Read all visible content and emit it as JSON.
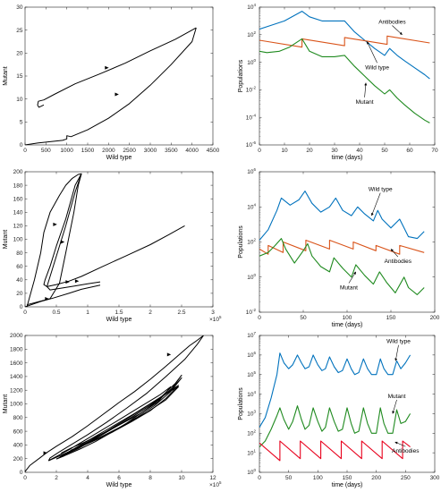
{
  "chart_data": [
    {
      "id": "p1",
      "type": "line",
      "panel": "top-left",
      "xlabel": "Wild type",
      "ylabel": "Mutant",
      "xlim": [
        0,
        4500
      ],
      "ylim": [
        0,
        30
      ],
      "grid": false,
      "xticks": [
        "0",
        "500",
        "1000",
        "1500",
        "2000",
        "2500",
        "3000",
        "3500",
        "4000",
        "4500"
      ],
      "yticks": [
        "0",
        "5",
        "10",
        "15",
        "20",
        "25",
        "30"
      ],
      "series": [
        {
          "x": [
            0,
            300,
            700,
            900,
            1000,
            1000,
            1100,
            1500,
            2000,
            2500,
            3000,
            3500,
            4000,
            4100
          ],
          "y": [
            0,
            0.4,
            0.8,
            1.0,
            1.3,
            2.0,
            1.8,
            3.3,
            5.8,
            9.0,
            13.0,
            17.5,
            22.5,
            25.5
          ]
        },
        {
          "x": [
            4100,
            3600,
            3000,
            2400,
            1800,
            1200,
            700,
            450,
            320,
            300,
            330,
            400,
            450
          ],
          "y": [
            25.5,
            23.0,
            20.5,
            17.8,
            15.5,
            13.3,
            11.0,
            9.8,
            9.5,
            8.7,
            8.2,
            8.5,
            8.7
          ]
        }
      ],
      "arrows": [
        [
          1960,
          16.8
        ],
        [
          2200,
          11.0
        ]
      ]
    },
    {
      "id": "p2",
      "type": "line",
      "panel": "top-right",
      "xlabel": "time (days)",
      "ylabel": "Populations",
      "yscale": "log",
      "xlim": [
        0,
        70
      ],
      "ylim": [
        -6,
        4
      ],
      "grid": false,
      "xticks": [
        "0",
        "10",
        "20",
        "30",
        "40",
        "50",
        "60",
        "70"
      ],
      "ytick_exponents": [
        "4",
        "2",
        "0",
        "-2",
        "-4",
        "-6"
      ],
      "ytick_base": "10",
      "series": [
        {
          "color": "#0072BD",
          "x": [
            0,
            5,
            10,
            17,
            20,
            25,
            30,
            34,
            38,
            42,
            46,
            50,
            52,
            55,
            58,
            62,
            66,
            68
          ],
          "y": [
            2.4,
            2.7,
            3.0,
            3.7,
            3.3,
            3.0,
            3.0,
            3.0,
            2.2,
            1.6,
            1.0,
            0.5,
            1.0,
            0.5,
            0.1,
            -0.4,
            -0.9,
            -1.2
          ]
        },
        {
          "color": "#D95319",
          "x": [
            0,
            17,
            17,
            34,
            34,
            51,
            51,
            68
          ],
          "y": [
            1.6,
            1.1,
            1.7,
            1.2,
            1.8,
            1.3,
            1.9,
            1.4
          ]
        },
        {
          "color": "#1F8A1F",
          "x": [
            0,
            3,
            8,
            12,
            17,
            20,
            25,
            30,
            34,
            38,
            42,
            46,
            50,
            52,
            55,
            58,
            62,
            66,
            68
          ],
          "y": [
            0.8,
            0.7,
            0.8,
            1.1,
            1.7,
            0.8,
            0.4,
            0.4,
            0.5,
            -0.3,
            -1.0,
            -1.7,
            -2.3,
            -2.0,
            -2.6,
            -3.1,
            -3.7,
            -4.2,
            -4.4
          ]
        }
      ],
      "annotations": [
        {
          "text": "Antibodies",
          "x": 53,
          "y": 2.8,
          "ax": 57,
          "ay": 2.0
        },
        {
          "text": "Wild type",
          "x": 47,
          "y": -0.5,
          "ax": 43,
          "ay": 1.5
        },
        {
          "text": "Mutant",
          "x": 42,
          "y": -3.0,
          "ax": 42.5,
          "ay": -1.5
        }
      ]
    },
    {
      "id": "p3",
      "type": "line",
      "panel": "middle-left",
      "xlabel": "Wild type",
      "ylabel": "Mutant",
      "xexponent": "5",
      "xlim": [
        0,
        3
      ],
      "ylim": [
        0,
        200
      ],
      "grid": false,
      "xticks": [
        "0",
        "0.5",
        "1",
        "1.5",
        "2",
        "2.5",
        "3"
      ],
      "yticks": [
        "0",
        "20",
        "40",
        "60",
        "80",
        "100",
        "120",
        "140",
        "160",
        "180",
        "200"
      ],
      "series": [
        {
          "x": [
            0.03,
            0.4,
            0.55,
            0.65,
            0.78,
            0.85,
            0.9,
            0.8,
            0.65,
            0.5,
            0.4,
            0.32,
            0.3,
            0.35,
            0.5,
            0.7,
            0.9,
            1.2,
            1.6,
            2.0,
            2.3,
            2.55
          ],
          "y": [
            3,
            12,
            35,
            80,
            140,
            180,
            197,
            180,
            130,
            90,
            60,
            40,
            33,
            30,
            33,
            38,
            45,
            58,
            75,
            92,
            107,
            120
          ]
        },
        {
          "x": [
            0.03,
            0.15,
            0.25,
            0.3,
            0.4,
            0.55,
            0.65,
            0.75,
            0.85,
            0.9,
            0.8,
            0.65,
            0.5,
            0.4,
            0.35,
            0.4,
            0.6,
            0.8,
            1.0,
            1.2
          ],
          "y": [
            0,
            40,
            80,
            110,
            140,
            165,
            180,
            190,
            196,
            197,
            170,
            120,
            75,
            45,
            30,
            25,
            28,
            31,
            34,
            37
          ]
        },
        {
          "x": [
            0.0,
            0.25,
            0.45,
            0.7,
            0.9,
            1.2
          ],
          "y": [
            0,
            8,
            13,
            20,
            26,
            32
          ]
        }
      ],
      "arrows": [
        [
          0.48,
          122
        ],
        [
          0.6,
          96
        ],
        [
          0.68,
          37
        ],
        [
          0.83,
          38
        ],
        [
          0.35,
          12
        ]
      ]
    },
    {
      "id": "p4",
      "type": "line",
      "panel": "middle-right",
      "xlabel": "time (days)",
      "ylabel": "Populations",
      "yscale": "log",
      "xlim": [
        0,
        200
      ],
      "ylim": [
        -2,
        6
      ],
      "grid": false,
      "xticks": [
        "0",
        "50",
        "100",
        "150",
        "200"
      ],
      "ytick_exponents": [
        "6",
        "4",
        "2",
        "0",
        "-2"
      ],
      "ytick_base": "10",
      "series": [
        {
          "color": "#0072BD",
          "x": [
            0,
            10,
            20,
            25,
            35,
            45,
            52,
            60,
            70,
            80,
            87,
            95,
            105,
            112,
            120,
            130,
            135,
            140,
            150,
            160,
            165,
            170,
            180,
            188
          ],
          "y": [
            2.1,
            2.7,
            3.8,
            4.5,
            4.1,
            4.4,
            4.9,
            4.2,
            3.7,
            4.0,
            4.5,
            3.8,
            3.5,
            4.0,
            3.6,
            3.2,
            3.8,
            3.3,
            2.8,
            3.3,
            2.8,
            2.3,
            2.2,
            2.6
          ]
        },
        {
          "color": "#D95319",
          "x": [
            0,
            10,
            10,
            27,
            27,
            53,
            53,
            80,
            80,
            107,
            107,
            133,
            133,
            160,
            160,
            188
          ],
          "y": [
            1.6,
            1.3,
            1.8,
            1.4,
            2.0,
            1.5,
            2.1,
            1.6,
            2.1,
            1.6,
            2.0,
            1.5,
            1.8,
            1.3,
            1.8,
            1.4
          ]
        },
        {
          "color": "#1F8A1F",
          "x": [
            0,
            10,
            18,
            25,
            30,
            40,
            50,
            55,
            60,
            70,
            80,
            85,
            95,
            105,
            110,
            120,
            130,
            137,
            145,
            155,
            165,
            170,
            180,
            188
          ],
          "y": [
            1.2,
            1.4,
            1.8,
            2.2,
            1.6,
            0.8,
            1.5,
            1.9,
            1.2,
            0.6,
            0.3,
            1.1,
            0.5,
            0.0,
            0.7,
            0.1,
            -0.4,
            0.3,
            -0.3,
            -0.9,
            0.0,
            -0.6,
            -1.0,
            -0.6
          ]
        }
      ],
      "annotations": [
        {
          "text": "Wild type",
          "x": 138,
          "y": 4.9,
          "ax": 128,
          "ay": 3.5
        },
        {
          "text": "Antibodies",
          "x": 158,
          "y": 0.8,
          "ax": 150,
          "ay": 1.6
        },
        {
          "text": "Mutant",
          "x": 102,
          "y": -0.7,
          "ax": 110,
          "ay": 0.3
        }
      ]
    },
    {
      "id": "p5",
      "type": "line",
      "panel": "bottom-left",
      "xlabel": "Wild type",
      "ylabel": "Mutant",
      "xexponent": "5",
      "xlim": [
        0,
        12
      ],
      "ylim": [
        0,
        2000
      ],
      "grid": false,
      "xticks": [
        "0",
        "2",
        "4",
        "6",
        "8",
        "10",
        "12"
      ],
      "yticks": [
        "0",
        "200",
        "400",
        "600",
        "800",
        "1000",
        "1200",
        "1400",
        "1600",
        "1800",
        "2000"
      ],
      "series": [
        {
          "x": [
            0.0,
            0.3,
            1.0,
            1.4,
            2,
            3,
            4,
            5,
            6,
            7,
            8,
            9,
            10,
            10.5,
            11.0,
            11.4,
            11.0,
            10.2,
            9.0,
            7.8,
            6.5,
            5.2,
            4.0,
            3.0,
            2.2,
            1.6,
            1.5
          ],
          "y": [
            10,
            100,
            220,
            290,
            380,
            520,
            680,
            850,
            1020,
            1180,
            1360,
            1550,
            1750,
            1850,
            1930,
            2000,
            1870,
            1650,
            1400,
            1160,
            940,
            730,
            550,
            410,
            300,
            210,
            170
          ]
        },
        {
          "x": [
            1.5,
            3,
            5,
            7,
            8.5,
            9.6,
            10,
            9.4,
            8.5,
            7.5,
            6.5,
            5.5,
            4.5,
            3.5,
            2.5,
            2.0
          ],
          "y": [
            170,
            320,
            560,
            830,
            1060,
            1300,
            1420,
            1230,
            1050,
            880,
            720,
            580,
            450,
            340,
            240,
            195
          ]
        },
        {
          "x": [
            2.0,
            3.5,
            5,
            6.5,
            8,
            9.3,
            10,
            9.3,
            8.3,
            7.2,
            6.0,
            4.8,
            3.6,
            2.7,
            2.2
          ],
          "y": [
            195,
            360,
            560,
            760,
            980,
            1200,
            1380,
            1180,
            980,
            810,
            650,
            510,
            390,
            290,
            220
          ]
        },
        {
          "x": [
            2.2,
            3.5,
            5,
            6.5,
            8,
            9.2,
            9.8,
            9.0,
            8.0,
            6.8,
            5.6,
            4.5,
            3.5,
            2.8
          ],
          "y": [
            220,
            380,
            570,
            780,
            1000,
            1180,
            1270,
            1080,
            900,
            740,
            590,
            470,
            370,
            300
          ]
        },
        {
          "x": [
            2.8,
            4,
            5.5,
            7,
            8.4,
            9.4,
            9.8,
            9.0,
            7.8,
            6.5,
            5.3,
            4.3,
            3.4,
            2.9
          ],
          "y": [
            300,
            460,
            660,
            860,
            1060,
            1200,
            1250,
            1060,
            880,
            710,
            570,
            460,
            370,
            320
          ]
        },
        {
          "x": [
            1.5,
            2.8,
            4.2,
            5.8,
            7.3,
            8.6,
            9.3,
            8.5,
            7.3,
            6.0,
            4.8,
            3.8,
            2.9,
            2.3
          ],
          "y": [
            170,
            330,
            520,
            740,
            950,
            1130,
            1250,
            1030,
            850,
            690,
            550,
            440,
            350,
            280
          ]
        }
      ],
      "arrows": [
        [
          1.3,
          282
        ],
        [
          9.2,
          1720
        ]
      ]
    },
    {
      "id": "p6",
      "type": "line",
      "panel": "bottom-right",
      "xlabel": "time (days)",
      "ylabel": "Populations",
      "yscale": "log",
      "xlim": [
        0,
        300
      ],
      "ylim": [
        0,
        7
      ],
      "grid": false,
      "xticks": [
        "0",
        "50",
        "100",
        "150",
        "200",
        "250",
        "300"
      ],
      "ytick_exponents": [
        "7",
        "6",
        "5",
        "4",
        "3",
        "2",
        "1",
        "0"
      ],
      "ytick_base": "10",
      "series": [
        {
          "color": "#0072BD",
          "x": [
            0,
            10,
            20,
            30,
            35,
            42,
            50,
            57,
            65,
            72,
            78,
            85,
            92,
            100,
            107,
            113,
            120,
            128,
            135,
            142,
            150,
            157,
            163,
            170,
            178,
            185,
            192,
            200,
            207,
            213,
            220,
            228,
            235,
            242,
            250,
            258
          ],
          "y": [
            2.3,
            2.8,
            3.8,
            5.0,
            6.1,
            5.6,
            5.3,
            5.5,
            6.0,
            5.6,
            5.3,
            5.4,
            6.0,
            5.5,
            5.2,
            5.3,
            5.9,
            5.4,
            5.1,
            5.2,
            5.8,
            5.3,
            5.0,
            5.1,
            5.8,
            5.3,
            5.0,
            5.0,
            5.8,
            5.3,
            5.0,
            5.0,
            5.7,
            5.3,
            5.6,
            6.0
          ]
        },
        {
          "color": "#1F8A1F",
          "x": [
            0,
            10,
            20,
            30,
            35,
            42,
            50,
            57,
            65,
            72,
            78,
            85,
            92,
            100,
            107,
            113,
            120,
            128,
            135,
            142,
            150,
            157,
            163,
            170,
            178,
            185,
            192,
            200,
            207,
            213,
            220,
            228,
            235,
            242,
            250,
            258
          ],
          "y": [
            1.3,
            1.6,
            2.2,
            2.9,
            3.3,
            2.7,
            2.2,
            2.6,
            3.4,
            2.7,
            2.2,
            2.4,
            3.3,
            2.6,
            2.1,
            2.3,
            3.3,
            2.6,
            2.1,
            2.2,
            3.3,
            2.5,
            2.0,
            2.1,
            3.3,
            2.5,
            2.0,
            2.0,
            3.3,
            2.5,
            2.0,
            2.0,
            3.2,
            2.5,
            2.6,
            3.0
          ]
        },
        {
          "color": "#E8001C",
          "x": [
            0,
            35,
            35,
            70,
            70,
            105,
            105,
            140,
            140,
            175,
            175,
            210,
            210,
            245,
            245,
            258
          ],
          "y": [
            1.5,
            0.6,
            1.6,
            0.7,
            1.6,
            0.7,
            1.6,
            0.7,
            1.6,
            0.7,
            1.6,
            0.7,
            1.6,
            0.7,
            1.6,
            1.3
          ]
        }
      ],
      "annotations": [
        {
          "text": "Wild type",
          "x": 238,
          "y": 6.6,
          "ax": 233,
          "ay": 5.7
        },
        {
          "text": "Mutant",
          "x": 235,
          "y": 3.8,
          "ax": 228,
          "ay": 3.0
        },
        {
          "text": "Antibodies",
          "x": 250,
          "y": 1.0,
          "ax": 232,
          "ay": 1.55
        }
      ]
    }
  ]
}
